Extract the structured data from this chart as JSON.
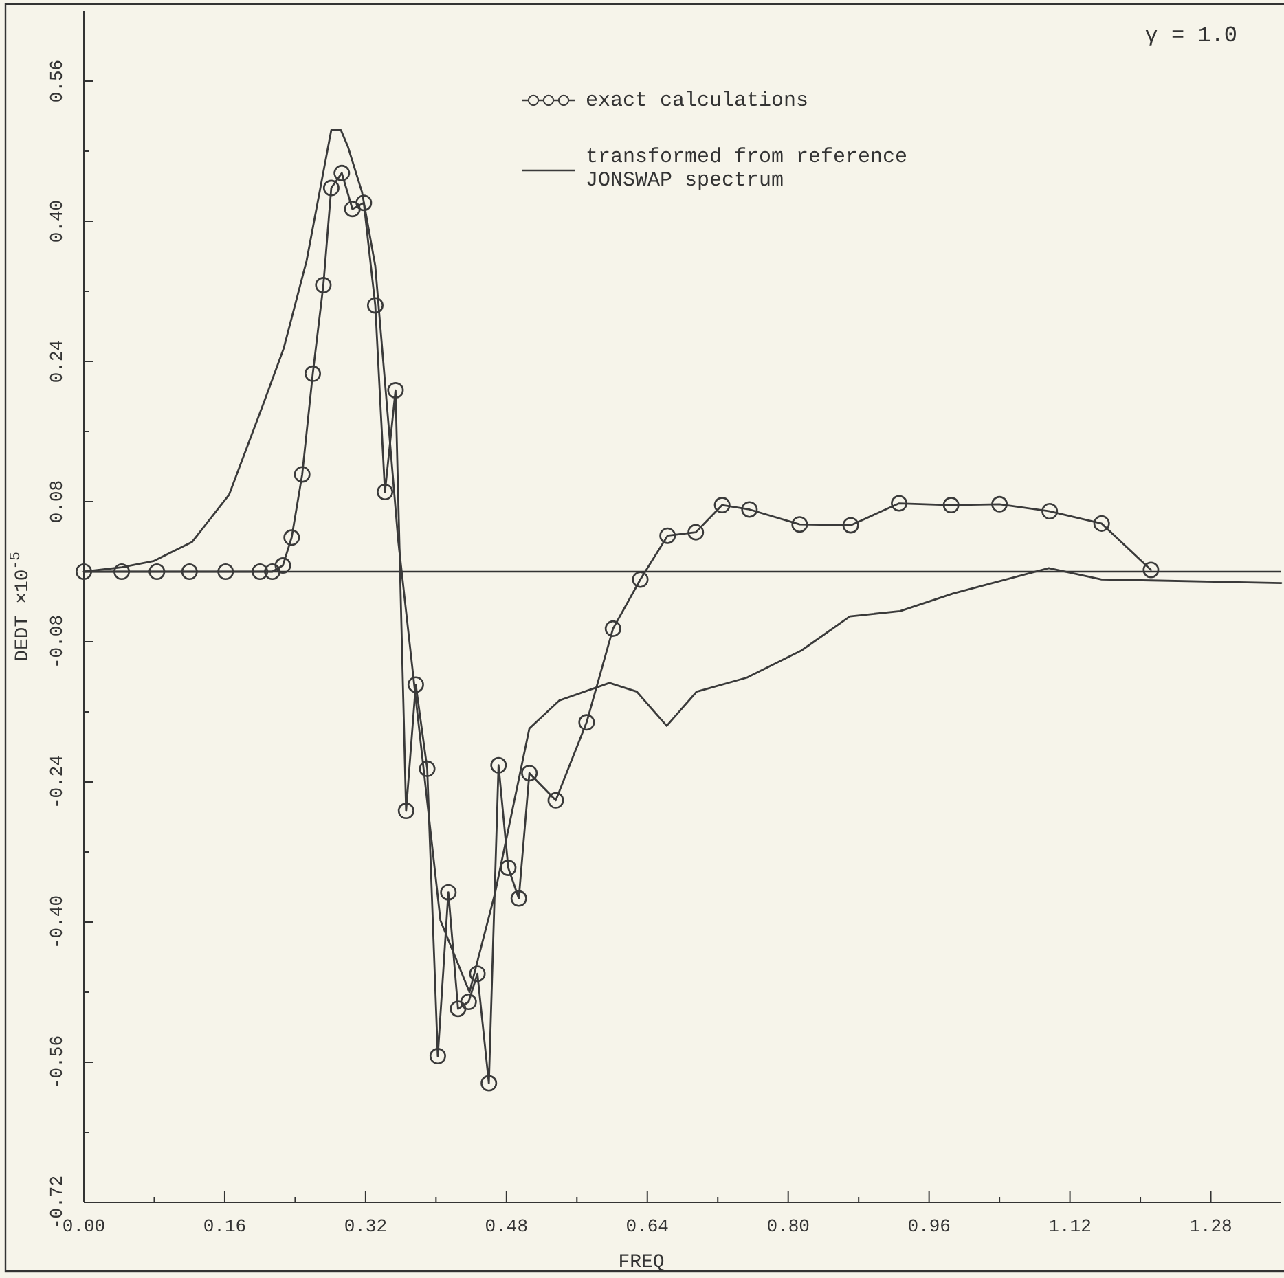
{
  "chart_data": {
    "type": "line",
    "xlabel": "FREQ",
    "ylabel": "DEDT ×10$^{-5}$",
    "annotations": [
      "γ = 1.0"
    ],
    "xlim": [
      0,
      1.36
    ],
    "ylim": [
      -0.72,
      0.64
    ],
    "xticks": [
      {
        "value": 0,
        "label": "0.00"
      },
      {
        "value": 0.08,
        "label": null
      },
      {
        "value": 0.16,
        "label": "0.16"
      },
      {
        "value": 0.24,
        "label": null
      },
      {
        "value": 0.32,
        "label": "0.32"
      },
      {
        "value": 0.4,
        "label": null
      },
      {
        "value": 0.48,
        "label": "0.48"
      },
      {
        "value": 0.56,
        "label": null
      },
      {
        "value": 0.64,
        "label": "0.64"
      },
      {
        "value": 0.72,
        "label": null
      },
      {
        "value": 0.8,
        "label": "0.80"
      },
      {
        "value": 0.88,
        "label": null
      },
      {
        "value": 0.96,
        "label": "0.96"
      },
      {
        "value": 1.04,
        "label": null
      },
      {
        "value": 1.12,
        "label": "1.12"
      },
      {
        "value": 1.2,
        "label": null
      },
      {
        "value": 1.28,
        "label": "1.28"
      }
    ],
    "yticks": [
      {
        "value": -0.72,
        "label": "-0.72"
      },
      {
        "value": -0.64,
        "label": null
      },
      {
        "value": -0.56,
        "label": "-0.56"
      },
      {
        "value": -0.48,
        "label": null
      },
      {
        "value": -0.4,
        "label": "-0.40"
      },
      {
        "value": -0.32,
        "label": null
      },
      {
        "value": -0.24,
        "label": "-0.24"
      },
      {
        "value": -0.16,
        "label": null
      },
      {
        "value": -0.08,
        "label": "-0.08"
      },
      {
        "value": 0,
        "label": null
      },
      {
        "value": 0.08,
        "label": "0.08"
      },
      {
        "value": 0.16,
        "label": null
      },
      {
        "value": 0.24,
        "label": "0.24"
      },
      {
        "value": 0.32,
        "label": null
      },
      {
        "value": 0.4,
        "label": "0.40"
      },
      {
        "value": 0.48,
        "label": null
      },
      {
        "value": 0.56,
        "label": "0.56"
      }
    ],
    "ref_lines": [
      {
        "axis": "y",
        "value": 0,
        "color": "#333333"
      }
    ],
    "grid": false,
    "legend": "top right",
    "line_style": "solid",
    "series": [
      {
        "name": "exact calculations",
        "color": "#3a3a3a",
        "marker": "circle",
        "x": [
          0,
          0.043,
          0.083,
          0.12,
          0.161,
          0.2,
          0.214,
          0.226,
          0.236,
          0.248,
          0.26,
          0.272,
          0.281,
          0.293,
          0.305,
          0.318,
          0.331,
          0.342,
          0.354,
          0.366,
          0.377,
          0.39,
          0.402,
          0.414,
          0.425,
          0.437,
          0.447,
          0.46,
          0.471,
          0.482,
          0.494,
          0.506,
          0.536,
          0.571,
          0.601,
          0.632,
          0.663,
          0.695,
          0.725,
          0.756,
          0.813,
          0.871,
          0.926,
          0.985,
          1.04,
          1.097,
          1.156,
          1.212
        ],
        "values": [
          0,
          0,
          0,
          0,
          0,
          0,
          0,
          0.007,
          0.039,
          0.111,
          0.226,
          0.327,
          0.438,
          0.455,
          0.414,
          0.421,
          0.304,
          0.091,
          0.207,
          -0.273,
          -0.129,
          -0.225,
          -0.553,
          -0.366,
          -0.499,
          -0.491,
          -0.459,
          -0.584,
          -0.221,
          -0.338,
          -0.373,
          -0.23,
          -0.261,
          -0.172,
          -0.065,
          -0.009,
          0.041,
          0.045,
          0.076,
          0.071,
          0.054,
          0.053,
          0.078,
          0.076,
          0.077,
          0.069,
          0.055,
          0.002
        ]
      },
      {
        "name": "transformed from reference JONSWAP spectrum",
        "color": "#3a3a3a",
        "marker": "none",
        "x": [
          0,
          0.043,
          0.079,
          0.123,
          0.165,
          0.204,
          0.227,
          0.253,
          0.281,
          0.292,
          0.3,
          0.316,
          0.331,
          0.357,
          0.405,
          0.438,
          0.467,
          0.506,
          0.54,
          0.597,
          0.628,
          0.662,
          0.696,
          0.753,
          0.815,
          0.87,
          0.927,
          0.987,
          1.096,
          1.156,
          1.212,
          1.36
        ],
        "values": [
          0,
          0.005,
          0.012,
          0.034,
          0.088,
          0.192,
          0.255,
          0.355,
          0.504,
          0.504,
          0.485,
          0.433,
          0.349,
          0.036,
          -0.398,
          -0.48,
          -0.367,
          -0.179,
          -0.147,
          -0.127,
          -0.137,
          -0.176,
          -0.137,
          -0.121,
          -0.09,
          -0.051,
          -0.045,
          -0.025,
          0.004,
          -0.009,
          -0.01,
          -0.013
        ]
      }
    ]
  }
}
